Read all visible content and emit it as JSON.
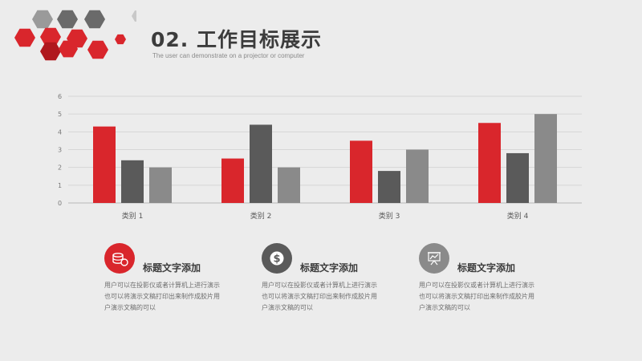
{
  "header": {
    "title": "02. 工作目标展示",
    "subtitle": "The user can demonstrate on a projector or computer"
  },
  "colors": {
    "red": "#d9262c",
    "dark_gray": "#5a5a5a",
    "mid_gray": "#8a8a8a",
    "gray_hex": "#9a9a9a",
    "light_hex": "#c8c8c8"
  },
  "chart_data": {
    "type": "bar",
    "categories": [
      "类别 1",
      "类别 2",
      "类别 3",
      "类别 4"
    ],
    "series": [
      {
        "color": "#d9262c",
        "values": [
          4.3,
          2.5,
          3.5,
          4.5
        ]
      },
      {
        "color": "#5a5a5a",
        "values": [
          2.4,
          4.4,
          1.8,
          2.8
        ]
      },
      {
        "color": "#8a8a8a",
        "values": [
          2.0,
          2.0,
          3.0,
          5.0
        ]
      }
    ],
    "yticks": [
      "0",
      "1",
      "2",
      "3",
      "4",
      "5",
      "6"
    ],
    "ylim": [
      0,
      6
    ],
    "grid": true,
    "legend": "none"
  },
  "cards": [
    {
      "title": "标题文字添加",
      "body": "用户可以在投影仪或者计算机上进行演示也可以将演示文稿打印出来制作成胶片用户演示文稿的可以",
      "icon": "coins-icon",
      "color": "#d9262c"
    },
    {
      "title": "标题文字添加",
      "body": "用户可以在投影仪或者计算机上进行演示也可以将演示文稿打印出来制作成胶片用户演示文稿的可以",
      "icon": "dollar-icon",
      "color": "#5a5a5a"
    },
    {
      "title": "标题文字添加",
      "body": "用户可以在投影仪或者计算机上进行演示也可以将演示文稿打印出来制作成胶片用户演示文稿的可以",
      "icon": "presentation-chart-icon",
      "color": "#8a8a8a"
    }
  ]
}
